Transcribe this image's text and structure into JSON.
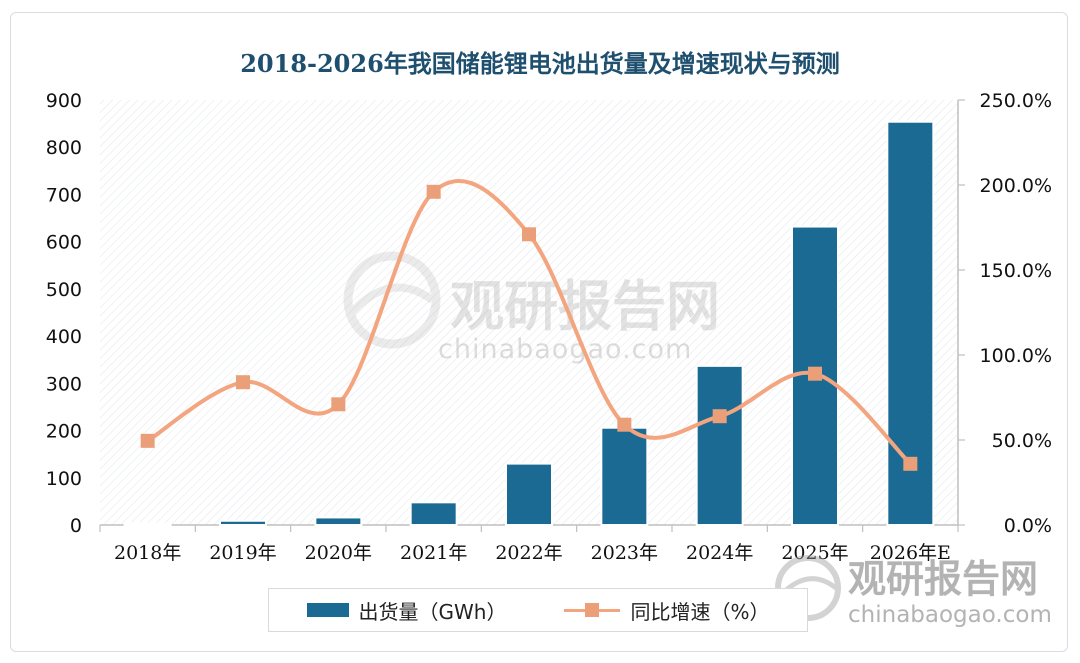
{
  "chart_data": {
    "type": "bar",
    "title": "2018-2026年我国储能锂电池出货量及增速现状与预测",
    "categories": [
      "2018年",
      "2019年",
      "2020年",
      "2021年",
      "2022年",
      "2023年",
      "2024年",
      "2025年",
      "2026年E"
    ],
    "series": [
      {
        "name": "出货量（GWh）",
        "type": "bar",
        "axis": "left",
        "values": [
          3,
          9,
          16,
          48,
          130,
          206,
          337,
          632,
          854
        ]
      },
      {
        "name": "同比增速（%）",
        "type": "line",
        "axis": "right",
        "values": [
          49.5,
          84,
          71,
          196,
          171,
          59,
          64,
          89,
          36
        ]
      }
    ],
    "left_axis": {
      "ticks": [
        "0",
        "100",
        "200",
        "300",
        "400",
        "500",
        "600",
        "700",
        "800",
        "900"
      ],
      "ylim": [
        0,
        900
      ]
    },
    "right_axis": {
      "ticks": [
        "0.0%",
        "50.0%",
        "100.0%",
        "150.0%",
        "200.0%",
        "250.0%"
      ],
      "ylim": [
        0,
        250
      ]
    },
    "legend_position": "bottom",
    "grid": false,
    "colors": {
      "bar": "#1a6a93",
      "line": "#f3a57f",
      "marker": "#eb9f78",
      "title": "#1e4f6e"
    }
  },
  "watermark": {
    "brand": "观研报告网",
    "url": "chinabaogao.com"
  }
}
